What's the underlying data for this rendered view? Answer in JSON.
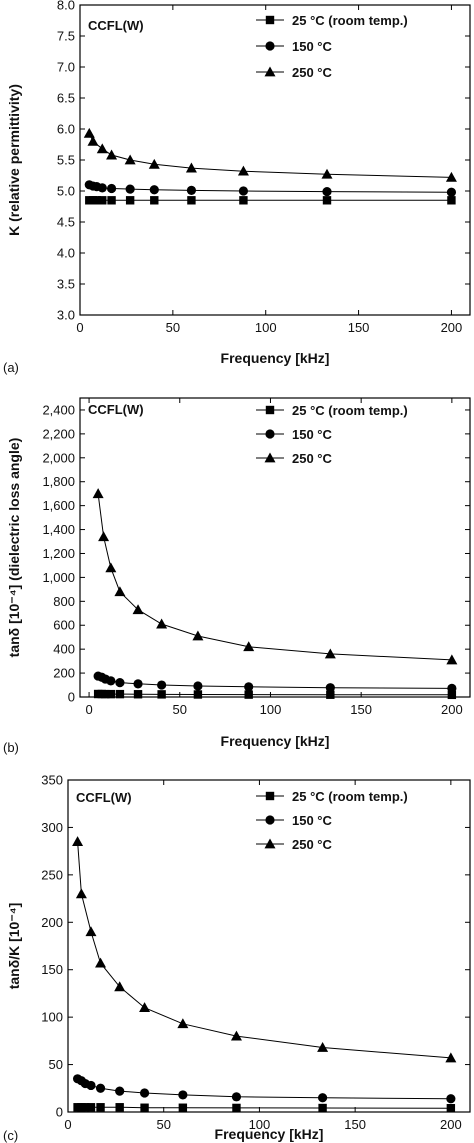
{
  "chart_data": [
    {
      "type": "line",
      "panel_label": "(a)",
      "annotation": "CCFL(W)",
      "xlabel": "Frequency [kHz]",
      "ylabel": "K (relative permittivity)",
      "xlim": [
        0,
        210
      ],
      "ylim": [
        3.0,
        8.0
      ],
      "xticks": [
        0,
        50,
        100,
        150,
        200
      ],
      "xtick_labels": [
        "0",
        "50",
        "100",
        "150",
        "200"
      ],
      "yticks": [
        3.0,
        3.5,
        4.0,
        4.5,
        5.0,
        5.5,
        6.0,
        6.5,
        7.0,
        7.5,
        8.0
      ],
      "ytick_labels": [
        "3.0",
        "3.5",
        "4.0",
        "4.5",
        "5.0",
        "5.5",
        "6.0",
        "6.5",
        "7.0",
        "7.5",
        "8.0"
      ],
      "legend_position": "top-right",
      "series": [
        {
          "name": "25 °C (room temp.)",
          "marker": "square",
          "x": [
            5,
            7,
            9,
            12,
            17,
            27,
            40,
            60,
            88,
            133,
            200
          ],
          "y": [
            4.85,
            4.85,
            4.85,
            4.85,
            4.85,
            4.85,
            4.85,
            4.85,
            4.85,
            4.85,
            4.85
          ]
        },
        {
          "name": "150 °C",
          "marker": "circle",
          "x": [
            5,
            7,
            9,
            12,
            17,
            27,
            40,
            60,
            88,
            133,
            200
          ],
          "y": [
            5.1,
            5.08,
            5.07,
            5.05,
            5.04,
            5.03,
            5.02,
            5.01,
            5.0,
            4.99,
            4.98
          ]
        },
        {
          "name": "250 °C",
          "marker": "triangle",
          "x": [
            5,
            7,
            12,
            17,
            27,
            40,
            60,
            88,
            133,
            200
          ],
          "y": [
            5.93,
            5.8,
            5.68,
            5.58,
            5.5,
            5.43,
            5.37,
            5.32,
            5.27,
            5.22
          ]
        }
      ]
    },
    {
      "type": "line",
      "panel_label": "(b)",
      "annotation": "CCFL(W)",
      "xlabel": "Frequency [kHz]",
      "ylabel": "tanδ [10⁻⁴] (dielectric loss angle)",
      "xlim": [
        -5,
        210
      ],
      "ylim": [
        0,
        2500
      ],
      "xticks": [
        0,
        50,
        100,
        150,
        200
      ],
      "xtick_labels": [
        "0",
        "50",
        "100",
        "150",
        "200"
      ],
      "yticks": [
        0,
        200,
        400,
        600,
        800,
        1000,
        1200,
        1400,
        1600,
        1800,
        2000,
        2200,
        2400
      ],
      "ytick_labels": [
        "0",
        "200",
        "400",
        "600",
        "800",
        "1,000",
        "1,200",
        "1,400",
        "1,600",
        "1,800",
        "2,000",
        "2,200",
        "2,400"
      ],
      "legend_position": "top-right",
      "series": [
        {
          "name": "25 °C (room temp.)",
          "marker": "square",
          "x": [
            5,
            7,
            9,
            12,
            17,
            27,
            40,
            60,
            88,
            133,
            200
          ],
          "y": [
            25,
            25,
            24,
            24,
            24,
            23,
            22,
            21,
            20,
            19,
            18
          ]
        },
        {
          "name": "150 °C",
          "marker": "circle",
          "x": [
            5,
            7,
            9,
            12,
            17,
            27,
            40,
            60,
            88,
            133,
            200
          ],
          "y": [
            175,
            165,
            150,
            135,
            120,
            110,
            100,
            92,
            85,
            78,
            72
          ]
        },
        {
          "name": "250 °C",
          "marker": "triangle",
          "x": [
            5,
            8,
            12,
            17,
            27,
            40,
            60,
            88,
            133,
            200
          ],
          "y": [
            1700,
            1340,
            1080,
            880,
            730,
            610,
            510,
            420,
            360,
            310
          ]
        }
      ]
    },
    {
      "type": "line",
      "panel_label": "(c)",
      "annotation": "CCFL(W)",
      "xlabel": "Frequency [kHz]",
      "ylabel": "tanδ/K [10⁻⁴]",
      "xlim": [
        0,
        210
      ],
      "ylim": [
        0,
        350
      ],
      "xticks": [
        0,
        50,
        100,
        150,
        200
      ],
      "xtick_labels": [
        "0",
        "50",
        "100",
        "150",
        "200"
      ],
      "yticks": [
        0,
        50,
        100,
        150,
        200,
        250,
        300,
        350
      ],
      "ytick_labels": [
        "0",
        "50",
        "100",
        "150",
        "200",
        "250",
        "300",
        "350"
      ],
      "legend_position": "top-right",
      "series": [
        {
          "name": "25 °C (room temp.)",
          "marker": "square",
          "x": [
            5,
            7,
            9,
            12,
            17,
            27,
            40,
            60,
            88,
            133,
            200
          ],
          "y": [
            5,
            5,
            5,
            5,
            5,
            5,
            4.5,
            4.5,
            4.3,
            4.2,
            4
          ]
        },
        {
          "name": "150 °C",
          "marker": "circle",
          "x": [
            5,
            7,
            9,
            12,
            17,
            27,
            40,
            60,
            88,
            133,
            200
          ],
          "y": [
            35,
            33,
            30,
            28,
            25,
            22,
            20,
            18,
            16,
            15,
            14
          ]
        },
        {
          "name": "250 °C",
          "marker": "triangle",
          "x": [
            5,
            7,
            12,
            17,
            27,
            40,
            60,
            88,
            133,
            200
          ],
          "y": [
            285,
            230,
            190,
            157,
            132,
            110,
            93,
            80,
            68,
            57
          ]
        }
      ]
    }
  ]
}
